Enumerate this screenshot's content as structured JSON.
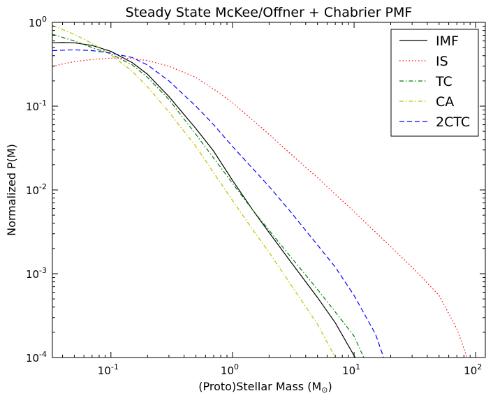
{
  "chart_data": {
    "type": "line",
    "title": "Steady State McKee/Offner + Chabrier PMF",
    "xlabel": "(Proto)Stellar Mass (M",
    "xlabel_symbol": "⊙",
    "xlabel_close": ")",
    "ylabel": "Normalized P(M)",
    "xscale": "log",
    "yscale": "log",
    "xlim": [
      0.033,
      120
    ],
    "ylim": [
      0.0001,
      1
    ],
    "x_ticks": [
      {
        "value": 0.1,
        "base": "10",
        "exp": "-1"
      },
      {
        "value": 1,
        "base": "10",
        "exp": "0"
      },
      {
        "value": 10,
        "base": "10",
        "exp": "1"
      },
      {
        "value": 100,
        "base": "10",
        "exp": "2"
      }
    ],
    "y_ticks": [
      {
        "value": 1,
        "base": "10",
        "exp": "0"
      },
      {
        "value": 0.1,
        "base": "10",
        "exp": "-1"
      },
      {
        "value": 0.01,
        "base": "10",
        "exp": "-2"
      },
      {
        "value": 0.001,
        "base": "10",
        "exp": "-3"
      },
      {
        "value": 0.0001,
        "base": "10",
        "exp": "-4"
      }
    ],
    "grid": false,
    "legend_position": "top-right",
    "series": [
      {
        "name": "IMF",
        "color": "#000000",
        "style": "solid",
        "points": [
          [
            0.033,
            0.57
          ],
          [
            0.04,
            0.575
          ],
          [
            0.05,
            0.57
          ],
          [
            0.07,
            0.53
          ],
          [
            0.1,
            0.45
          ],
          [
            0.15,
            0.33
          ],
          [
            0.2,
            0.24
          ],
          [
            0.3,
            0.13
          ],
          [
            0.5,
            0.054
          ],
          [
            0.7,
            0.029
          ],
          [
            1,
            0.013
          ],
          [
            1.5,
            0.0055
          ],
          [
            2,
            0.0031
          ],
          [
            3,
            0.0014
          ],
          [
            5,
            0.00052
          ],
          [
            7,
            0.00026
          ],
          [
            10.2,
            0.0001
          ]
        ]
      },
      {
        "name": "IS",
        "color": "#ff0000",
        "style": "dotted",
        "points": [
          [
            0.033,
            0.3
          ],
          [
            0.05,
            0.34
          ],
          [
            0.07,
            0.36
          ],
          [
            0.1,
            0.375
          ],
          [
            0.15,
            0.37
          ],
          [
            0.2,
            0.35
          ],
          [
            0.3,
            0.3
          ],
          [
            0.5,
            0.22
          ],
          [
            0.7,
            0.16
          ],
          [
            1,
            0.11
          ],
          [
            2,
            0.046
          ],
          [
            3,
            0.027
          ],
          [
            5,
            0.014
          ],
          [
            10,
            0.0055
          ],
          [
            20,
            0.0021
          ],
          [
            30,
            0.0012
          ],
          [
            50,
            0.00055
          ],
          [
            70,
            0.00022
          ],
          [
            85,
            0.0001
          ]
        ]
      },
      {
        "name": "TC",
        "color": "#007f00",
        "style": "dashdot",
        "points": [
          [
            0.033,
            0.72
          ],
          [
            0.05,
            0.6
          ],
          [
            0.07,
            0.5
          ],
          [
            0.1,
            0.42
          ],
          [
            0.15,
            0.31
          ],
          [
            0.2,
            0.22
          ],
          [
            0.3,
            0.12
          ],
          [
            0.5,
            0.046
          ],
          [
            0.7,
            0.024
          ],
          [
            1,
            0.012
          ],
          [
            1.5,
            0.0055
          ],
          [
            2,
            0.0033
          ],
          [
            3,
            0.0016
          ],
          [
            5,
            0.00065
          ],
          [
            7,
            0.00035
          ],
          [
            10,
            0.00018
          ],
          [
            12,
            0.0001
          ]
        ]
      },
      {
        "name": "CA",
        "color": "#bfbf00",
        "style": "dashdot",
        "points": [
          [
            0.033,
            0.92
          ],
          [
            0.05,
            0.72
          ],
          [
            0.07,
            0.56
          ],
          [
            0.1,
            0.41
          ],
          [
            0.15,
            0.26
          ],
          [
            0.2,
            0.17
          ],
          [
            0.3,
            0.085
          ],
          [
            0.5,
            0.033
          ],
          [
            0.7,
            0.016
          ],
          [
            1,
            0.0075
          ],
          [
            1.5,
            0.0032
          ],
          [
            2,
            0.0018
          ],
          [
            3,
            0.00075
          ],
          [
            5,
            0.00025
          ],
          [
            7,
            0.0001
          ]
        ]
      },
      {
        "name": "2CTC",
        "color": "#0000ff",
        "style": "dashed",
        "points": [
          [
            0.033,
            0.46
          ],
          [
            0.05,
            0.47
          ],
          [
            0.07,
            0.46
          ],
          [
            0.1,
            0.43
          ],
          [
            0.15,
            0.38
          ],
          [
            0.2,
            0.31
          ],
          [
            0.3,
            0.2
          ],
          [
            0.5,
            0.1
          ],
          [
            0.7,
            0.06
          ],
          [
            1,
            0.033
          ],
          [
            2,
            0.011
          ],
          [
            3,
            0.0055
          ],
          [
            5,
            0.0022
          ],
          [
            7,
            0.0012
          ],
          [
            10,
            0.00055
          ],
          [
            15,
            0.00019
          ],
          [
            17.5,
            0.0001
          ]
        ]
      }
    ]
  }
}
